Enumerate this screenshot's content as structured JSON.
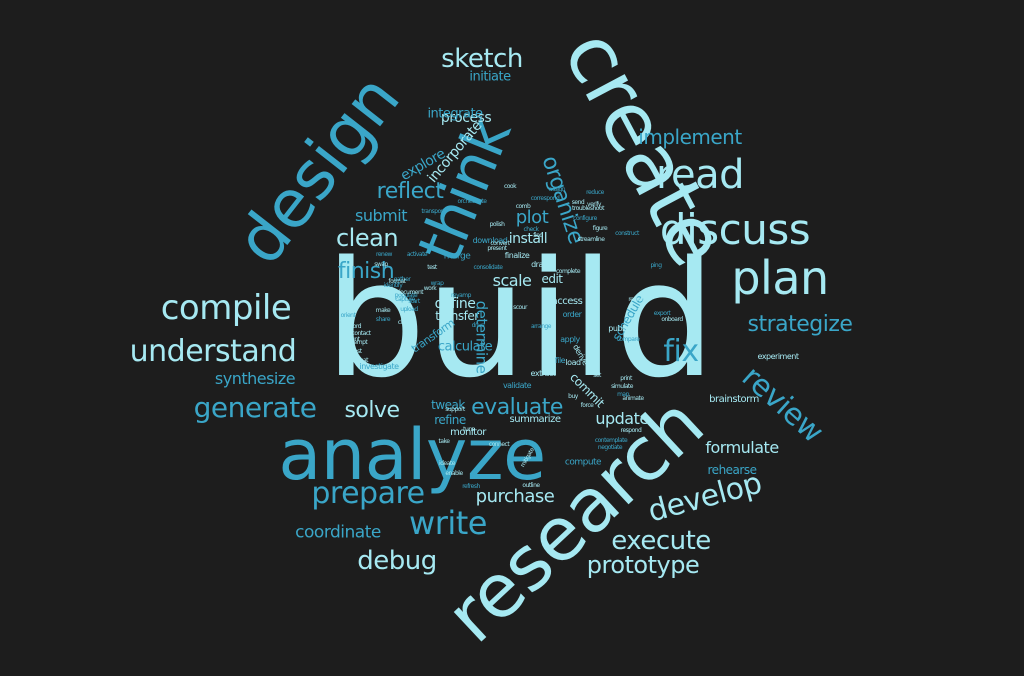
{
  "colors": {
    "background": "#1d1d1d",
    "light": "#a6e9f2",
    "mid": "#3aa6c8",
    "deep": "#2b8fb0",
    "white": "#ffffff"
  },
  "words": [
    {
      "text": "build"
    },
    {
      "text": "create"
    },
    {
      "text": "research"
    },
    {
      "text": "analyze"
    },
    {
      "text": "design"
    },
    {
      "text": "think"
    },
    {
      "text": "discuss"
    },
    {
      "text": "plan"
    },
    {
      "text": "read"
    },
    {
      "text": "review"
    },
    {
      "text": "compile"
    },
    {
      "text": "understand"
    },
    {
      "text": "generate"
    },
    {
      "text": "prepare"
    },
    {
      "text": "write"
    },
    {
      "text": "develop"
    },
    {
      "text": "execute"
    },
    {
      "text": "prototype"
    },
    {
      "text": "debug"
    },
    {
      "text": "sketch"
    },
    {
      "text": "implement"
    },
    {
      "text": "strategize"
    },
    {
      "text": "finish"
    },
    {
      "text": "clean"
    },
    {
      "text": "reflect"
    },
    {
      "text": "solve"
    },
    {
      "text": "evaluate"
    },
    {
      "text": "fix"
    },
    {
      "text": "formulate"
    },
    {
      "text": "purchase"
    },
    {
      "text": "coordinate"
    },
    {
      "text": "synthesize"
    },
    {
      "text": "organize"
    },
    {
      "text": "submit"
    },
    {
      "text": "install"
    },
    {
      "text": "process"
    },
    {
      "text": "integrate"
    },
    {
      "text": "explore"
    },
    {
      "text": "incorporate"
    },
    {
      "text": "initiate"
    },
    {
      "text": "plot"
    },
    {
      "text": "define"
    },
    {
      "text": "scale"
    },
    {
      "text": "transfer"
    },
    {
      "text": "determine"
    },
    {
      "text": "calculate"
    },
    {
      "text": "update"
    },
    {
      "text": "tweak"
    },
    {
      "text": "refine"
    },
    {
      "text": "monitor"
    },
    {
      "text": "summarize"
    },
    {
      "text": "commit"
    },
    {
      "text": "rehearse"
    },
    {
      "text": "schedule"
    },
    {
      "text": "brainstorm"
    },
    {
      "text": "experiment"
    },
    {
      "text": "edit"
    },
    {
      "text": "access"
    },
    {
      "text": "finalize"
    },
    {
      "text": "merge"
    },
    {
      "text": "download"
    },
    {
      "text": "compute"
    },
    {
      "text": "investigate"
    },
    {
      "text": "order"
    },
    {
      "text": "apply"
    },
    {
      "text": "derive"
    },
    {
      "text": "publish"
    },
    {
      "text": "load"
    },
    {
      "text": "validate"
    },
    {
      "text": "extract"
    },
    {
      "text": "draw"
    },
    {
      "text": "complete"
    },
    {
      "text": "file"
    },
    {
      "text": "present"
    },
    {
      "text": "convert"
    },
    {
      "text": "simulate"
    },
    {
      "text": "ideate"
    },
    {
      "text": "connect"
    },
    {
      "text": "outline"
    },
    {
      "text": "animate"
    },
    {
      "text": "support"
    },
    {
      "text": "verify"
    },
    {
      "text": "configure"
    },
    {
      "text": "streamline"
    },
    {
      "text": "construct"
    },
    {
      "text": "cook"
    },
    {
      "text": "polish"
    },
    {
      "text": "send"
    },
    {
      "text": "comb"
    },
    {
      "text": "record"
    },
    {
      "text": "invest"
    },
    {
      "text": "reformat"
    },
    {
      "text": "attempt"
    },
    {
      "text": "contact"
    },
    {
      "text": "mount"
    },
    {
      "text": "populate"
    },
    {
      "text": "revamp"
    },
    {
      "text": "consolidate"
    },
    {
      "text": "print"
    },
    {
      "text": "onboard"
    },
    {
      "text": "compare"
    },
    {
      "text": "negotiate"
    },
    {
      "text": "respond"
    },
    {
      "text": "refresh"
    },
    {
      "text": "enable"
    },
    {
      "text": "take"
    },
    {
      "text": "share"
    },
    {
      "text": "make"
    },
    {
      "text": "clear"
    },
    {
      "text": "stack"
    },
    {
      "text": "work"
    },
    {
      "text": "renew"
    },
    {
      "text": "activate"
    },
    {
      "text": "force"
    },
    {
      "text": "buy"
    },
    {
      "text": "tune"
    },
    {
      "text": "mitigate"
    },
    {
      "text": "contemplate"
    },
    {
      "text": "find"
    },
    {
      "text": "check"
    },
    {
      "text": "troubleshoot"
    },
    {
      "text": "correspond"
    },
    {
      "text": "orchestrate"
    },
    {
      "text": "figure"
    },
    {
      "text": "reduce"
    },
    {
      "text": "assign"
    },
    {
      "text": "ping"
    },
    {
      "text": "export"
    },
    {
      "text": "request"
    },
    {
      "text": "start"
    },
    {
      "text": "test"
    },
    {
      "text": "upload"
    },
    {
      "text": "identify"
    },
    {
      "text": "transport"
    },
    {
      "text": "swap"
    },
    {
      "text": "transform"
    },
    {
      "text": "capture"
    },
    {
      "text": "scour"
    },
    {
      "text": "set"
    },
    {
      "text": "map"
    },
    {
      "text": "gather"
    },
    {
      "text": "orient"
    },
    {
      "text": "format"
    },
    {
      "text": "drive"
    },
    {
      "text": "document"
    },
    {
      "text": "wrap"
    },
    {
      "text": "arrange"
    }
  ]
}
